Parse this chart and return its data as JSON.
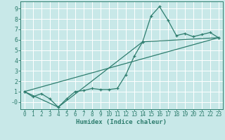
{
  "xlabel": "Humidex (Indice chaleur)",
  "background_color": "#c8e8e8",
  "grid_color": "#ffffff",
  "line_color": "#2e7d6e",
  "xlim": [
    -0.5,
    23.5
  ],
  "ylim": [
    -0.7,
    9.7
  ],
  "xticks": [
    0,
    1,
    2,
    3,
    4,
    5,
    6,
    7,
    8,
    9,
    10,
    11,
    12,
    13,
    14,
    15,
    16,
    17,
    18,
    19,
    20,
    21,
    22,
    23
  ],
  "yticks": [
    0,
    1,
    2,
    3,
    4,
    5,
    6,
    7,
    8,
    9
  ],
  "ytick_labels": [
    "-0",
    "1",
    "2",
    "3",
    "4",
    "5",
    "6",
    "7",
    "8",
    "9"
  ],
  "series1_x": [
    0,
    1,
    2,
    3,
    4,
    5,
    6,
    7,
    8,
    9,
    10,
    11,
    12,
    13,
    14,
    15,
    16,
    17,
    18,
    19,
    20,
    21,
    22,
    23
  ],
  "series1_y": [
    1.0,
    0.5,
    0.8,
    0.3,
    -0.5,
    0.3,
    1.0,
    1.1,
    1.3,
    1.2,
    1.2,
    1.3,
    2.6,
    4.4,
    5.8,
    8.3,
    9.2,
    7.9,
    6.4,
    6.6,
    6.3,
    6.5,
    6.7,
    6.2
  ],
  "series2_x": [
    0,
    4,
    14,
    23
  ],
  "series2_y": [
    1.0,
    -0.5,
    5.8,
    6.2
  ],
  "series3_x": [
    0,
    23
  ],
  "series3_y": [
    1.0,
    6.2
  ],
  "tick_fontsize": 5.5,
  "xlabel_fontsize": 6.5
}
